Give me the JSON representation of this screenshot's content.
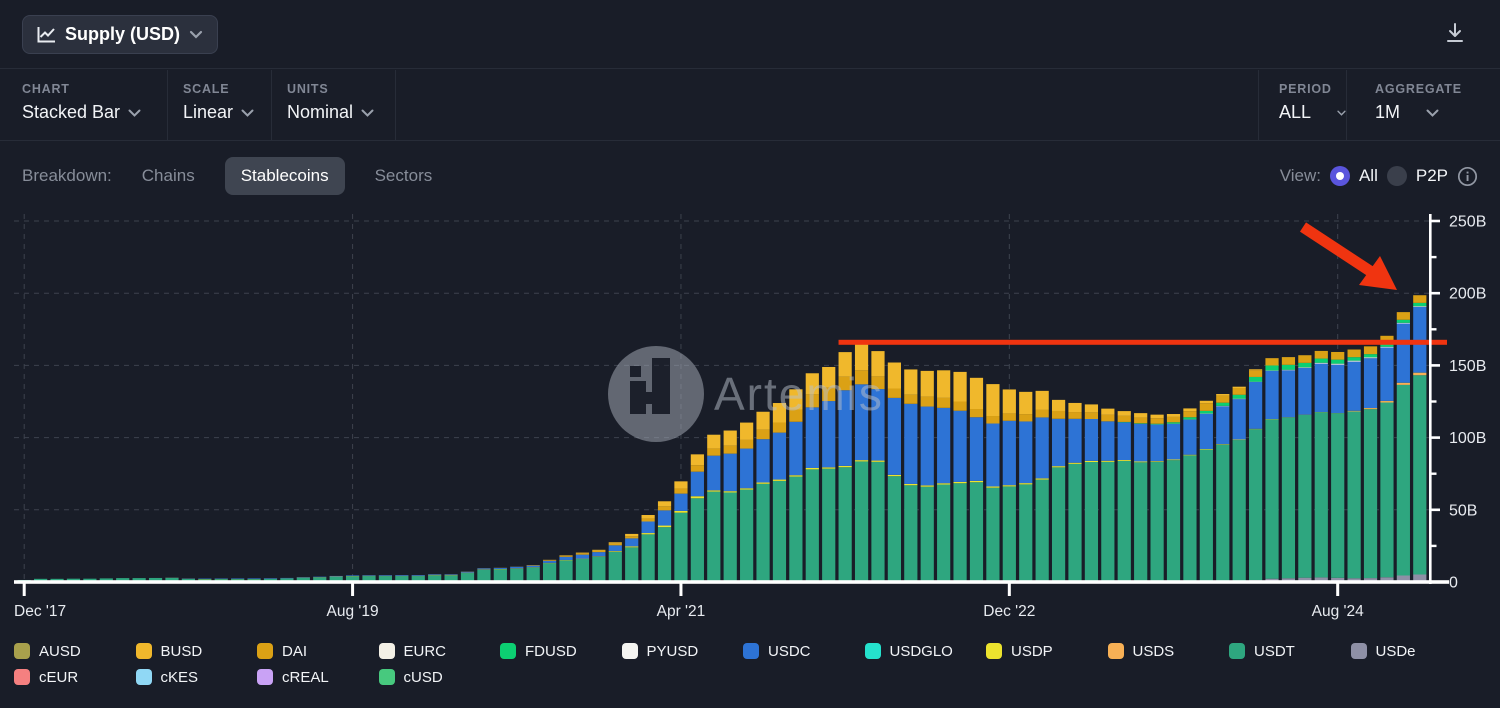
{
  "header": {
    "metric_button": {
      "label": "Supply (USD)",
      "icon": "line-chart-icon"
    },
    "download_icon": "download-icon"
  },
  "controls": [
    {
      "label": "CHART",
      "value": "Stacked Bar"
    },
    {
      "label": "SCALE",
      "value": "Linear"
    },
    {
      "label": "UNITS",
      "value": "Nominal"
    },
    {
      "label": "PERIOD",
      "value": "ALL"
    },
    {
      "label": "AGGREGATE",
      "value": "1M"
    }
  ],
  "breakdown": {
    "label": "Breakdown:",
    "tabs": [
      {
        "label": "Chains",
        "selected": false
      },
      {
        "label": "Stablecoins",
        "selected": true
      },
      {
        "label": "Sectors",
        "selected": false
      }
    ],
    "view": {
      "label": "View:",
      "options": [
        {
          "label": "All",
          "selected": true
        },
        {
          "label": "P2P",
          "selected": false
        }
      ],
      "info_icon": "info-icon"
    }
  },
  "watermark": {
    "text": "Artemis",
    "logo": "artemis-pixel-a-logo"
  },
  "colors": {
    "background": "#191d28",
    "divider": "#272c38",
    "muted_text": "#878d99",
    "grid": "#3d424e",
    "axis": "#ffffff",
    "annotation_red": "#f03410",
    "radio_accent": "#5a55dd",
    "pill_bg": "#3f4551",
    "button_bg": "#2b303d"
  },
  "chart_data": {
    "type": "bar",
    "stacked": true,
    "title": "Stablecoin Supply (USD), monthly, stacked by stablecoin",
    "unit": "billions USD",
    "x_range": {
      "start": "Dec '17",
      "end": "Jan '25",
      "interval": "1M",
      "bar_count": 86
    },
    "ylim": [
      0,
      250
    ],
    "y_ticks": [
      {
        "v": 0,
        "label": "0"
      },
      {
        "v": 50,
        "label": "50B"
      },
      {
        "v": 100,
        "label": "100B"
      },
      {
        "v": 150,
        "label": "150B"
      },
      {
        "v": 200,
        "label": "200B"
      },
      {
        "v": 250,
        "label": "250B"
      }
    ],
    "y_minor_ticks": [
      25,
      75,
      125,
      175,
      225
    ],
    "x_ticks": [
      {
        "i": 0,
        "label": "Dec '17"
      },
      {
        "i": 20,
        "label": "Aug '19"
      },
      {
        "i": 40,
        "label": "Apr '21"
      },
      {
        "i": 60,
        "label": "Dec '22"
      },
      {
        "i": 80,
        "label": "Aug '24"
      }
    ],
    "grid": "dashed horizontal and vertical",
    "legend_position": "bottom",
    "annotations": {
      "red_line": {
        "value_b": 166,
        "start_index": 50,
        "note": "horizontal red line from the 2022 peak to the right edge"
      },
      "red_arrow": {
        "points_to": "latest bar (~197B)",
        "direction": "down-right"
      }
    },
    "series": [
      {
        "name": "USDe",
        "color": "#8e90a6",
        "offset": 73,
        "values": [
          0.3,
          0.6,
          1.3,
          2.3,
          2.6,
          3.0,
          3.2,
          2.9,
          2.6,
          2.7,
          3.3,
          4.5,
          5.2
        ]
      },
      {
        "name": "USDT",
        "color": "#2ea67f",
        "offset": 0,
        "values": [
          1.4,
          2.2,
          2.2,
          2.3,
          2.3,
          2.5,
          2.7,
          2.7,
          2.8,
          2.8,
          2.1,
          1.9,
          2.0,
          2.0,
          2.0,
          2.1,
          2.4,
          2.9,
          3.2,
          3.6,
          4.0,
          4.1,
          4.1,
          4.1,
          4.1,
          4.6,
          4.6,
          6.2,
          8.5,
          8.8,
          9.2,
          10.0,
          13.0,
          15.0,
          15.9,
          17.5,
          20.9,
          24.0,
          33.0,
          38.0,
          48.0,
          58.0,
          62.6,
          62.0,
          64.0,
          68.0,
          70.0,
          73.0,
          78.0,
          78.5,
          79.5,
          83.5,
          83.2,
          73.3,
          67.0,
          66.0,
          67.5,
          68.4,
          69.1,
          65.3,
          66.2,
          67.6,
          70.9,
          79.4,
          81.8,
          83.1,
          83.2,
          83.8,
          82.9,
          83.2,
          84.4,
          87.7,
          91.7,
          94.8,
          97.7,
          104.5,
          110.3,
          111.3,
          112.7,
          114.4,
          114.0,
          115.5,
          117.0,
          121.0,
          132.0,
          138.0
        ]
      },
      {
        "name": "USDS",
        "color": "#f7b055",
        "offset": 81,
        "values": [
          0.4,
          0.7,
          1.0,
          1.4,
          1.7
        ]
      },
      {
        "name": "USDP",
        "color": "#ece32e",
        "offset": 9,
        "values": [
          0.1,
          0.15,
          0.17,
          0.17,
          0.15,
          0.13,
          0.12,
          0.12,
          0.15,
          0.17,
          0.2,
          0.23,
          0.22,
          0.2,
          0.2,
          0.2,
          0.2,
          0.2,
          0.25,
          0.25,
          0.25,
          0.25,
          0.25,
          0.25,
          0.25,
          0.25,
          0.3,
          0.5,
          0.7,
          0.9,
          1.1,
          1.2,
          1.4,
          0.9,
          0.9,
          0.9,
          0.9,
          0.95,
          0.95,
          0.95,
          0.9,
          0.9,
          0.9,
          0.9,
          0.9,
          0.9,
          0.9,
          0.9,
          0.9,
          0.9,
          0.85,
          0.85,
          0.88,
          0.87,
          0.83,
          0.8,
          0.78,
          0.76,
          0.65,
          0.55,
          0.5,
          0.48,
          0.45,
          0.4,
          0.38,
          0.35,
          0.3,
          0.25,
          0.2,
          0.16,
          0.13,
          0.1,
          0.1,
          0.1,
          0.1,
          0.1,
          0.1
        ]
      },
      {
        "name": "USDC",
        "color": "#2d73d5",
        "offset": 9,
        "values": [
          0.1,
          0.2,
          0.3,
          0.3,
          0.35,
          0.4,
          0.4,
          0.3,
          0.3,
          0.3,
          0.4,
          0.4,
          0.4,
          0.45,
          0.5,
          0.5,
          0.5,
          0.45,
          0.7,
          0.7,
          0.7,
          1.1,
          1.1,
          1.4,
          2.2,
          2.8,
          2.9,
          4.0,
          5.5,
          8.0,
          10.5,
          12.0,
          17.0,
          24.0,
          26.0,
          27.5,
          30.0,
          32.5,
          37.0,
          42.0,
          45.9,
          52.4,
          52.5,
          49.5,
          53.3,
          55.5,
          54.6,
          52.2,
          49.3,
          44.1,
          43.6,
          44.6,
          42.7,
          42.2,
          32.8,
          30.4,
          29.0,
          27.3,
          26.1,
          26.0,
          25.3,
          24.6,
          24.3,
          24.4,
          26.2,
          28.0,
          32.4,
          33.4,
          32.5,
          32.4,
          33.5,
          33.5,
          34.0,
          34.5,
          37.0,
          41.0,
          45.5
        ]
      },
      {
        "name": "PYUSD",
        "color": "#f4f4f1",
        "offset": 68,
        "values": [
          0.1,
          0.1,
          0.15,
          0.16,
          0.2,
          0.3,
          0.3,
          0.2,
          0.2,
          0.4,
          0.4,
          0.6,
          0.7,
          0.7,
          0.6,
          0.5,
          0.5,
          0.5
        ]
      },
      {
        "name": "FDUSD",
        "color": "#0ccf72",
        "offset": 67,
        "values": [
          0.3,
          0.4,
          0.5,
          1.0,
          1.5,
          1.8,
          2.2,
          2.7,
          3.3,
          3.5,
          3.4,
          3.1,
          2.9,
          2.8,
          2.4,
          2.2,
          2.0,
          2.1,
          2.3
        ]
      },
      {
        "name": "DAI",
        "color": "#dba115",
        "offset": 25,
        "values": [
          0.1,
          0.1,
          0.1,
          0.1,
          0.1,
          0.1,
          0.2,
          0.4,
          0.6,
          0.9,
          1.0,
          1.1,
          1.5,
          2.0,
          2.8,
          3.5,
          4.5,
          5.0,
          5.5,
          6.0,
          6.5,
          7.0,
          8.5,
          9.0,
          9.2,
          9.4,
          9.7,
          8.8,
          6.5,
          6.3,
          6.9,
          6.9,
          6.4,
          5.7,
          5.2,
          5.1,
          5.1,
          5.2,
          5.4,
          4.7,
          4.6,
          4.5,
          4.2,
          3.9,
          3.8,
          3.7,
          4.2,
          5.3,
          4.9,
          4.7,
          4.6,
          5.0,
          5.3,
          5.2,
          5.3,
          5.3,
          5.3,
          5.4,
          5.6,
          5.3,
          5.3
        ]
      },
      {
        "name": "BUSD",
        "color": "#f0b82c",
        "offset": 31,
        "values": [
          0.2,
          0.3,
          0.4,
          0.5,
          0.6,
          1.0,
          1.6,
          2.5,
          3.5,
          5.0,
          7.5,
          9.5,
          10.5,
          12.0,
          12.5,
          13.5,
          14.0,
          14.6,
          14.4,
          17.0,
          18.0,
          17.5,
          18.0,
          17.5,
          17.8,
          19.1,
          20.5,
          21.6,
          22.1,
          16.6,
          15.4,
          13.2,
          7.7,
          6.3,
          5.5,
          4.3,
          3.3,
          3.1,
          2.5,
          2.0,
          1.9,
          1.7,
          1.1,
          0.9,
          0.7,
          0.1,
          0.1,
          0.1,
          0,
          0,
          0,
          0,
          0,
          0,
          0
        ]
      }
    ]
  },
  "legend": {
    "rows": [
      [
        {
          "name": "AUSD",
          "color": "#a8a04c"
        },
        {
          "name": "BUSD",
          "color": "#f0b82c"
        },
        {
          "name": "DAI",
          "color": "#dba115"
        },
        {
          "name": "EURC",
          "color": "#f3f0e6"
        },
        {
          "name": "FDUSD",
          "color": "#0ccf72"
        },
        {
          "name": "PYUSD",
          "color": "#f4f4f1"
        },
        {
          "name": "USDC",
          "color": "#2d73d5"
        },
        {
          "name": "USDGLO",
          "color": "#25e2cd"
        },
        {
          "name": "USDP",
          "color": "#ece32e"
        },
        {
          "name": "USDS",
          "color": "#f7b055"
        },
        {
          "name": "USDT",
          "color": "#2ea67f"
        },
        {
          "name": "USDe",
          "color": "#8e90a6"
        }
      ],
      [
        {
          "name": "cEUR",
          "color": "#f58080"
        },
        {
          "name": "cKES",
          "color": "#90d8f5"
        },
        {
          "name": "cREAL",
          "color": "#c9a2f5"
        },
        {
          "name": "cUSD",
          "color": "#47c97e"
        }
      ]
    ]
  }
}
